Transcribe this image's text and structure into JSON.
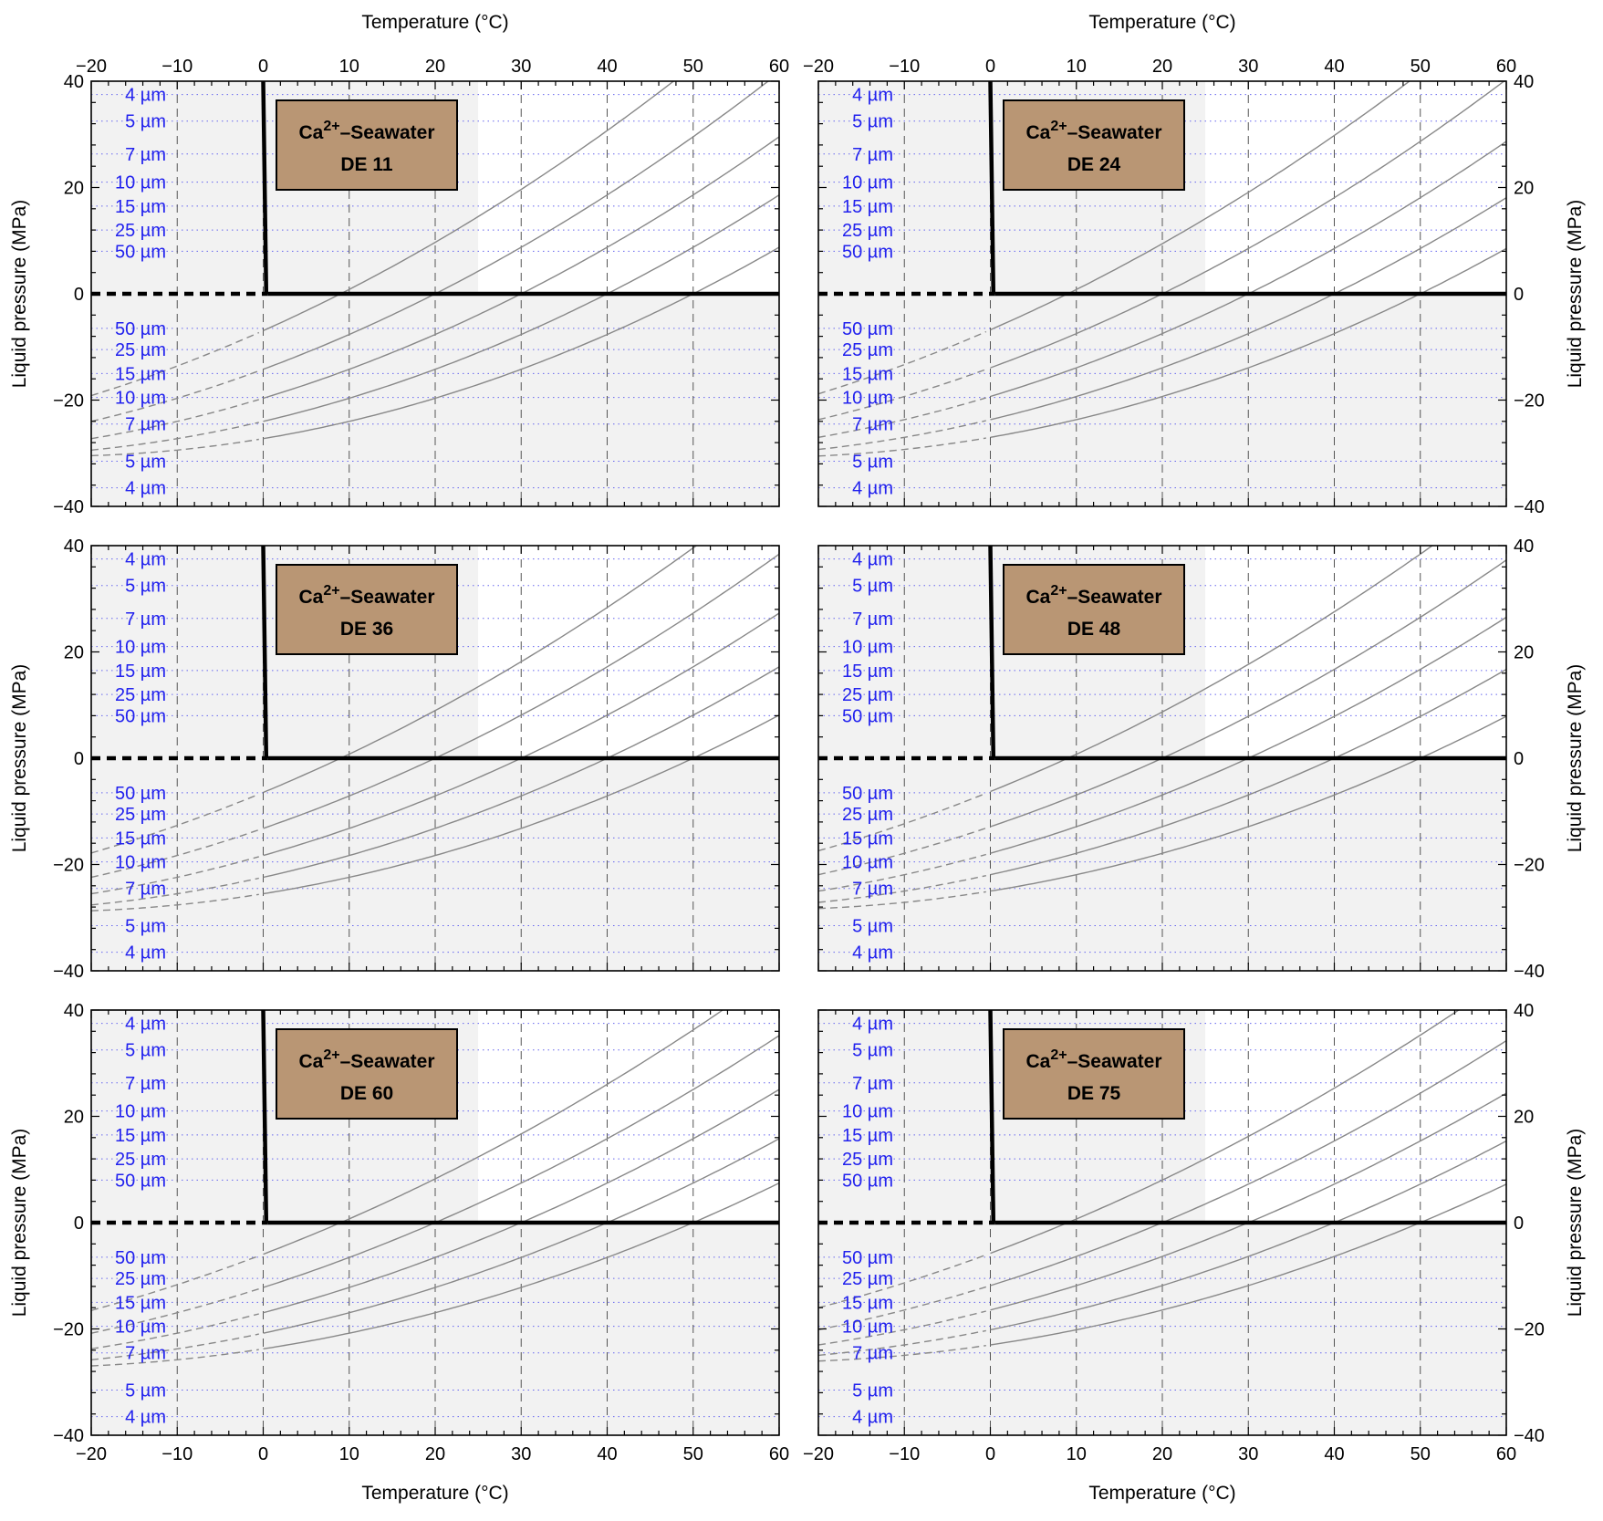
{
  "figure": {
    "xlabel": "Temperature (°C)",
    "ylabel": "Liquid pressure (MPa)",
    "xlim": [
      -20,
      60
    ],
    "ylim": [
      -40,
      40
    ],
    "xticks": [
      -20,
      -10,
      0,
      10,
      20,
      30,
      40,
      50,
      60
    ],
    "yticks": [
      -40,
      -20,
      0,
      20,
      40
    ],
    "colors": {
      "shading": "#f2f2f2",
      "label_box": "#b99674",
      "radius_text": "#2222ee",
      "radius_gridline": "#6666ee",
      "isochore": "#888888",
      "phase_line": "#000000"
    }
  },
  "chart_data": [
    {
      "type": "line",
      "box_line1_base": "Ca",
      "box_line1_sup": "2+",
      "box_line1_rest": "–Seawater",
      "box_line2": "DE 11",
      "radius_labels_top": [
        "4 µm",
        "5 µm",
        "7 µm",
        "10 µm",
        "15 µm",
        "25 µm",
        "50 µm"
      ],
      "radius_pressures_top": [
        37.5,
        32.5,
        26.3,
        21.0,
        16.5,
        12.0,
        8.0
      ],
      "radius_labels_bottom": [
        "50 µm",
        "25 µm",
        "15 µm",
        "10 µm",
        "7 µm",
        "5 µm",
        "4 µm"
      ],
      "radius_pressures_bottom": [
        -6.5,
        -10.5,
        -15.0,
        -19.5,
        -24.5,
        -31.5,
        -36.5
      ],
      "isochores": [
        {
          "x0": 9,
          "slope": 0.82,
          "curv": 0.0055
        },
        {
          "x0": 20,
          "slope": 0.82,
          "curv": 0.0055
        },
        {
          "x0": 30,
          "slope": 0.82,
          "curv": 0.0055
        },
        {
          "x0": 40,
          "slope": 0.82,
          "curv": 0.0055
        },
        {
          "x0": 50,
          "slope": 0.82,
          "curv": 0.0055
        }
      ]
    },
    {
      "type": "line",
      "box_line1_base": "Ca",
      "box_line1_sup": "2+",
      "box_line1_rest": "–Seawater",
      "box_line2": "DE 24",
      "radius_labels_top": [
        "4 µm",
        "5 µm",
        "7 µm",
        "10 µm",
        "15 µm",
        "25 µm",
        "50 µm"
      ],
      "radius_pressures_top": [
        37.5,
        32.5,
        26.3,
        21.0,
        16.5,
        12.0,
        8.0
      ],
      "radius_labels_bottom": [
        "50 µm",
        "25 µm",
        "15 µm",
        "10 µm",
        "7 µm",
        "5 µm",
        "4 µm"
      ],
      "radius_pressures_bottom": [
        -6.5,
        -10.5,
        -15.0,
        -19.5,
        -24.5,
        -31.5,
        -36.5
      ],
      "isochores": [
        {
          "x0": 9,
          "slope": 0.8,
          "curv": 0.0052
        },
        {
          "x0": 20,
          "slope": 0.8,
          "curv": 0.0052
        },
        {
          "x0": 30,
          "slope": 0.8,
          "curv": 0.0052
        },
        {
          "x0": 40,
          "slope": 0.8,
          "curv": 0.0052
        },
        {
          "x0": 50,
          "slope": 0.8,
          "curv": 0.0052
        }
      ]
    },
    {
      "type": "line",
      "box_line1_base": "Ca",
      "box_line1_sup": "2+",
      "box_line1_rest": "–Seawater",
      "box_line2": "DE 36",
      "radius_labels_top": [
        "4 µm",
        "5 µm",
        "7 µm",
        "10 µm",
        "15 µm",
        "25 µm",
        "50 µm"
      ],
      "radius_pressures_top": [
        37.5,
        32.5,
        26.3,
        21.0,
        16.5,
        12.0,
        8.0
      ],
      "radius_labels_bottom": [
        "50 µm",
        "25 µm",
        "15 µm",
        "10 µm",
        "7 µm",
        "5 µm",
        "4 µm"
      ],
      "radius_pressures_bottom": [
        -6.5,
        -10.5,
        -15.0,
        -19.5,
        -24.5,
        -31.5,
        -36.5
      ],
      "isochores": [
        {
          "x0": 9,
          "slope": 0.76,
          "curv": 0.005
        },
        {
          "x0": 20,
          "slope": 0.76,
          "curv": 0.005
        },
        {
          "x0": 30,
          "slope": 0.76,
          "curv": 0.005
        },
        {
          "x0": 40,
          "slope": 0.76,
          "curv": 0.005
        },
        {
          "x0": 50,
          "slope": 0.76,
          "curv": 0.005
        }
      ]
    },
    {
      "type": "line",
      "box_line1_base": "Ca",
      "box_line1_sup": "2+",
      "box_line1_rest": "–Seawater",
      "box_line2": "DE 48",
      "radius_labels_top": [
        "4 µm",
        "5 µm",
        "7 µm",
        "10 µm",
        "15 µm",
        "25 µm",
        "50 µm"
      ],
      "radius_pressures_top": [
        37.5,
        32.5,
        26.3,
        21.0,
        16.5,
        12.0,
        8.0
      ],
      "radius_labels_bottom": [
        "50 µm",
        "25 µm",
        "15 µm",
        "10 µm",
        "7 µm",
        "5 µm",
        "4 µm"
      ],
      "radius_pressures_bottom": [
        -6.5,
        -10.5,
        -15.0,
        -19.5,
        -24.5,
        -31.5,
        -36.5
      ],
      "isochores": [
        {
          "x0": 9,
          "slope": 0.74,
          "curv": 0.0048
        },
        {
          "x0": 20,
          "slope": 0.74,
          "curv": 0.0048
        },
        {
          "x0": 30,
          "slope": 0.74,
          "curv": 0.0048
        },
        {
          "x0": 40,
          "slope": 0.74,
          "curv": 0.0048
        },
        {
          "x0": 50,
          "slope": 0.74,
          "curv": 0.0048
        }
      ]
    },
    {
      "type": "line",
      "box_line1_base": "Ca",
      "box_line1_sup": "2+",
      "box_line1_rest": "–Seawater",
      "box_line2": "DE 60",
      "radius_labels_top": [
        "4 µm",
        "5 µm",
        "7 µm",
        "10 µm",
        "15 µm",
        "25 µm",
        "50 µm"
      ],
      "radius_pressures_top": [
        37.5,
        32.5,
        26.3,
        21.0,
        16.5,
        12.0,
        8.0
      ],
      "radius_labels_bottom": [
        "50 µm",
        "25 µm",
        "15 µm",
        "10 µm",
        "7 µm",
        "5 µm",
        "4 µm"
      ],
      "radius_pressures_bottom": [
        -6.5,
        -10.5,
        -15.0,
        -19.5,
        -24.5,
        -31.5,
        -36.5
      ],
      "isochores": [
        {
          "x0": 9,
          "slope": 0.7,
          "curv": 0.0045
        },
        {
          "x0": 20,
          "slope": 0.7,
          "curv": 0.0045
        },
        {
          "x0": 30,
          "slope": 0.7,
          "curv": 0.0045
        },
        {
          "x0": 40,
          "slope": 0.7,
          "curv": 0.0045
        },
        {
          "x0": 50,
          "slope": 0.7,
          "curv": 0.0045
        }
      ]
    },
    {
      "type": "line",
      "box_line1_base": "Ca",
      "box_line1_sup": "2+",
      "box_line1_rest": "–Seawater",
      "box_line2": "DE 75",
      "radius_labels_top": [
        "4 µm",
        "5 µm",
        "7 µm",
        "10 µm",
        "15 µm",
        "25 µm",
        "50 µm"
      ],
      "radius_pressures_top": [
        37.5,
        32.5,
        26.3,
        21.0,
        16.5,
        12.0,
        8.0
      ],
      "radius_labels_bottom": [
        "50 µm",
        "25 µm",
        "15 µm",
        "10 µm",
        "7 µm",
        "5 µm",
        "4 µm"
      ],
      "radius_pressures_bottom": [
        -6.5,
        -10.5,
        -15.0,
        -19.5,
        -24.5,
        -31.5,
        -36.5
      ],
      "isochores": [
        {
          "x0": 9,
          "slope": 0.68,
          "curv": 0.0044
        },
        {
          "x0": 20,
          "slope": 0.68,
          "curv": 0.0044
        },
        {
          "x0": 30,
          "slope": 0.68,
          "curv": 0.0044
        },
        {
          "x0": 40,
          "slope": 0.68,
          "curv": 0.0044
        },
        {
          "x0": 50,
          "slope": 0.68,
          "curv": 0.0044
        }
      ]
    }
  ]
}
